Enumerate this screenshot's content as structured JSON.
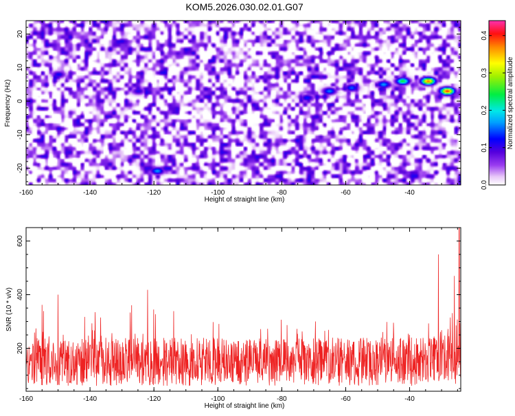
{
  "title": "KOM5.2026.030.02.01.G07",
  "chart_data": [
    {
      "type": "heatmap",
      "xlabel": "Height of straight line (km)",
      "ylabel": "Frequency (Hz)",
      "xlim": [
        -160,
        -24
      ],
      "ylim": [
        -25,
        24
      ],
      "xticks": [
        -160,
        -140,
        -120,
        -100,
        -80,
        -60,
        -40
      ],
      "yticks": [
        -20,
        -10,
        0,
        10,
        20
      ],
      "grid": false,
      "colorbar": {
        "label": "Normalized spectral amplitude",
        "range": [
          0.0,
          0.44
        ],
        "ticks": [
          0.0,
          0.1,
          0.2,
          0.3,
          0.4
        ],
        "colormap": "rainbow (white to purple to blue to cyan to green to yellow to red to magenta)"
      },
      "hotspots": [
        {
          "x": -34,
          "y": 6,
          "value": 0.38
        },
        {
          "x": -28,
          "y": 3,
          "value": 0.4
        },
        {
          "x": -42,
          "y": 6,
          "value": 0.25
        },
        {
          "x": -48,
          "y": 5,
          "value": 0.17
        },
        {
          "x": -65,
          "y": 3,
          "value": 0.16
        },
        {
          "x": -58,
          "y": 4,
          "value": 0.15
        },
        {
          "x": -72,
          "y": 1,
          "value": 0.13
        },
        {
          "x": -119,
          "y": -21,
          "value": 0.17
        },
        {
          "x": -150,
          "y": 8,
          "value": 0.12
        },
        {
          "x": -125,
          "y": 3,
          "value": 0.11
        }
      ]
    },
    {
      "type": "line",
      "xlabel": "Height of straight line (km)",
      "ylabel": "SNR (10 * v/v)",
      "xlim": [
        -160,
        -24
      ],
      "ylim": [
        40,
        650
      ],
      "xticks": [
        -160,
        -140,
        -120,
        -100,
        -80,
        -60,
        -40
      ],
      "yticks": [
        200,
        400,
        600
      ],
      "grid": false,
      "series_color": "#ee2222",
      "baseline_mean": 150,
      "noise_range": [
        60,
        420
      ],
      "peaks": [
        {
          "x": -122,
          "y": 418
        },
        {
          "x": -150,
          "y": 400
        },
        {
          "x": -31,
          "y": 550
        },
        {
          "x": -24.5,
          "y": 650
        },
        {
          "x": -26,
          "y": 470
        },
        {
          "x": -155,
          "y": 362
        }
      ]
    }
  ]
}
